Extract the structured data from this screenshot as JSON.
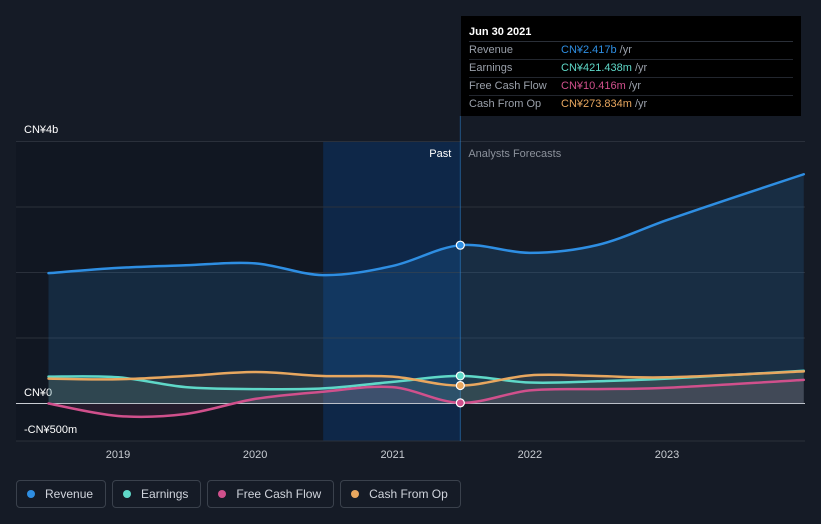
{
  "chart_data": {
    "type": "line",
    "y_axis": {
      "top_label": "CN¥4b",
      "zero_label": "CN¥0",
      "bottom_label": "-CN¥500m",
      "ylim": [
        -500,
        4000
      ],
      "unit": "CN¥m"
    },
    "x_ticks": [
      "2019",
      "2020",
      "2021",
      "2022",
      "2023"
    ],
    "region_labels": {
      "past": "Past",
      "forecast": "Analysts Forecasts"
    },
    "divider_date": "2021-06-30",
    "series": [
      {
        "key": "revenue",
        "name": "Revenue",
        "color": "#2e8ee2",
        "points": [
          [
            "2018-06-30",
            1990
          ],
          [
            "2019-01-01",
            2070
          ],
          [
            "2019-06-30",
            2110
          ],
          [
            "2020-01-01",
            2140
          ],
          [
            "2020-06-30",
            1960
          ],
          [
            "2021-01-01",
            2100
          ],
          [
            "2021-06-30",
            2417
          ],
          [
            "2022-01-01",
            2300
          ],
          [
            "2022-06-30",
            2420
          ],
          [
            "2023-01-01",
            2800
          ],
          [
            "2023-06-30",
            3150
          ],
          [
            "2023-12-31",
            3500
          ]
        ]
      },
      {
        "key": "earnings",
        "name": "Earnings",
        "color": "#5fd8c8",
        "points": [
          [
            "2018-06-30",
            410
          ],
          [
            "2019-01-01",
            400
          ],
          [
            "2019-06-30",
            250
          ],
          [
            "2020-01-01",
            220
          ],
          [
            "2020-06-30",
            230
          ],
          [
            "2021-01-01",
            330
          ],
          [
            "2021-06-30",
            421
          ],
          [
            "2022-01-01",
            320
          ],
          [
            "2022-06-30",
            340
          ],
          [
            "2023-01-01",
            380
          ],
          [
            "2023-12-31",
            500
          ]
        ]
      },
      {
        "key": "fcf",
        "name": "Free Cash Flow",
        "color": "#d0508c",
        "points": [
          [
            "2018-06-30",
            0
          ],
          [
            "2019-01-01",
            -190
          ],
          [
            "2019-06-30",
            -160
          ],
          [
            "2020-01-01",
            70
          ],
          [
            "2020-06-30",
            180
          ],
          [
            "2021-01-01",
            250
          ],
          [
            "2021-06-30",
            10
          ],
          [
            "2022-01-01",
            200
          ],
          [
            "2022-06-30",
            220
          ],
          [
            "2023-01-01",
            240
          ],
          [
            "2023-12-31",
            360
          ]
        ]
      },
      {
        "key": "cfo",
        "name": "Cash From Op",
        "color": "#e8a75f",
        "points": [
          [
            "2018-06-30",
            380
          ],
          [
            "2019-01-01",
            370
          ],
          [
            "2019-06-30",
            420
          ],
          [
            "2020-01-01",
            480
          ],
          [
            "2020-06-30",
            420
          ],
          [
            "2021-01-01",
            410
          ],
          [
            "2021-06-30",
            274
          ],
          [
            "2022-01-01",
            430
          ],
          [
            "2022-06-30",
            420
          ],
          [
            "2023-01-01",
            400
          ],
          [
            "2023-12-31",
            490
          ]
        ]
      }
    ]
  },
  "tooltip": {
    "date": "Jun 30 2021",
    "rows": [
      {
        "label": "Revenue",
        "value": "CN¥2.417b",
        "unit": "/yr",
        "color": "#2e8ee2"
      },
      {
        "label": "Earnings",
        "value": "CN¥421.438m",
        "unit": "/yr",
        "color": "#5fd8c8"
      },
      {
        "label": "Free Cash Flow",
        "value": "CN¥10.416m",
        "unit": "/yr",
        "color": "#d0508c"
      },
      {
        "label": "Cash From Op",
        "value": "CN¥273.834m",
        "unit": "/yr",
        "color": "#e8a75f"
      }
    ]
  },
  "legend": [
    {
      "label": "Revenue",
      "color": "#2e8ee2"
    },
    {
      "label": "Earnings",
      "color": "#5fd8c8"
    },
    {
      "label": "Free Cash Flow",
      "color": "#d0508c"
    },
    {
      "label": "Cash From Op",
      "color": "#e8a75f"
    }
  ]
}
